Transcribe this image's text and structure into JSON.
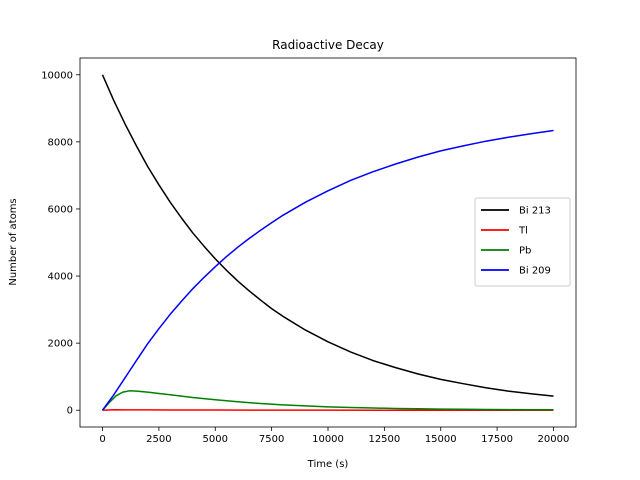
{
  "chart_data": {
    "type": "line",
    "title": "Radioactive Decay",
    "xlabel": "Time (s)",
    "ylabel": "Number of atoms",
    "xlim": [
      -1000,
      21000
    ],
    "ylim": [
      -500,
      10500
    ],
    "xticks": [
      0,
      2500,
      5000,
      7500,
      10000,
      12500,
      15000,
      17500,
      20000
    ],
    "xtick_labels": [
      "0",
      "2500",
      "5000",
      "7500",
      "10000",
      "12500",
      "15000",
      "17500",
      "20000"
    ],
    "yticks": [
      0,
      2000,
      4000,
      6000,
      8000,
      10000
    ],
    "ytick_labels": [
      "0",
      "2000",
      "4000",
      "6000",
      "8000",
      "10000"
    ],
    "grid": false,
    "legend_position": "center-right",
    "series": [
      {
        "name": "Bi 213",
        "color": "#000000",
        "points": [
          [
            0,
            10000
          ],
          [
            500,
            9230
          ],
          [
            1000,
            8530
          ],
          [
            1500,
            7880
          ],
          [
            2000,
            7270
          ],
          [
            2500,
            6720
          ],
          [
            3000,
            6200
          ],
          [
            3500,
            5730
          ],
          [
            4000,
            5290
          ],
          [
            4500,
            4890
          ],
          [
            5000,
            4510
          ],
          [
            5500,
            4170
          ],
          [
            6000,
            3850
          ],
          [
            6500,
            3560
          ],
          [
            7000,
            3290
          ],
          [
            7500,
            3030
          ],
          [
            8000,
            2800
          ],
          [
            9000,
            2390
          ],
          [
            10000,
            2040
          ],
          [
            11000,
            1740
          ],
          [
            12000,
            1480
          ],
          [
            13000,
            1270
          ],
          [
            14000,
            1080
          ],
          [
            15000,
            920
          ],
          [
            16000,
            790
          ],
          [
            17000,
            670
          ],
          [
            18000,
            570
          ],
          [
            19000,
            490
          ],
          [
            20000,
            420
          ]
        ]
      },
      {
        "name": "Tl",
        "color": "#ff0000",
        "points": [
          [
            0,
            0
          ],
          [
            500,
            12
          ],
          [
            1000,
            10
          ],
          [
            2000,
            9
          ],
          [
            3000,
            8
          ],
          [
            5000,
            6
          ],
          [
            7500,
            4
          ],
          [
            10000,
            3
          ],
          [
            12500,
            2
          ],
          [
            15000,
            1
          ],
          [
            17500,
            1
          ],
          [
            20000,
            0
          ]
        ]
      },
      {
        "name": "Pb",
        "color": "#008000",
        "points": [
          [
            0,
            0
          ],
          [
            300,
            230
          ],
          [
            600,
            430
          ],
          [
            900,
            540
          ],
          [
            1200,
            580
          ],
          [
            1500,
            570
          ],
          [
            2000,
            540
          ],
          [
            2500,
            500
          ],
          [
            3000,
            460
          ],
          [
            3500,
            420
          ],
          [
            4000,
            380
          ],
          [
            5000,
            310
          ],
          [
            6000,
            250
          ],
          [
            7000,
            200
          ],
          [
            8000,
            160
          ],
          [
            9000,
            130
          ],
          [
            10000,
            100
          ],
          [
            11000,
            80
          ],
          [
            12000,
            65
          ],
          [
            13000,
            52
          ],
          [
            14000,
            42
          ],
          [
            15000,
            34
          ],
          [
            16000,
            27
          ],
          [
            17000,
            22
          ],
          [
            18000,
            18
          ],
          [
            19000,
            14
          ],
          [
            20000,
            12
          ]
        ]
      },
      {
        "name": "Bi 209",
        "color": "#0000ff",
        "points": [
          [
            0,
            0
          ],
          [
            500,
            460
          ],
          [
            1000,
            970
          ],
          [
            1500,
            1480
          ],
          [
            2000,
            1980
          ],
          [
            2500,
            2430
          ],
          [
            3000,
            2860
          ],
          [
            3500,
            3250
          ],
          [
            4000,
            3620
          ],
          [
            4500,
            3960
          ],
          [
            5000,
            4280
          ],
          [
            5500,
            4580
          ],
          [
            6000,
            4860
          ],
          [
            6500,
            5120
          ],
          [
            7000,
            5360
          ],
          [
            7500,
            5590
          ],
          [
            8000,
            5810
          ],
          [
            9000,
            6200
          ],
          [
            10000,
            6540
          ],
          [
            11000,
            6850
          ],
          [
            12000,
            7110
          ],
          [
            13000,
            7340
          ],
          [
            14000,
            7550
          ],
          [
            15000,
            7730
          ],
          [
            16000,
            7880
          ],
          [
            17000,
            8020
          ],
          [
            18000,
            8140
          ],
          [
            19000,
            8240
          ],
          [
            20000,
            8340
          ]
        ]
      }
    ]
  }
}
